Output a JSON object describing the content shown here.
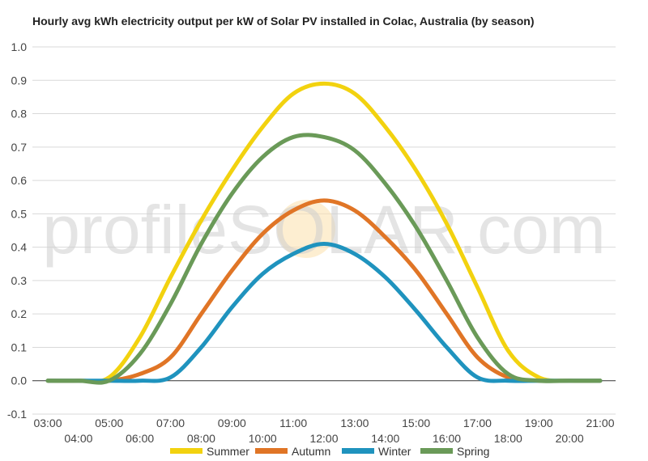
{
  "chart_data": {
    "type": "line",
    "title": "Hourly avg kWh electricity output per kW of Solar PV installed in Colac, Australia (by season)",
    "xlabel": "",
    "ylabel": "",
    "categories": [
      "03:00",
      "04:00",
      "05:00",
      "06:00",
      "07:00",
      "08:00",
      "09:00",
      "10:00",
      "11:00",
      "12:00",
      "13:00",
      "14:00",
      "15:00",
      "16:00",
      "17:00",
      "18:00",
      "19:00",
      "20:00",
      "21:00"
    ],
    "ylim": [
      -0.1,
      1.0
    ],
    "yticks": [
      "1.0",
      "0.9",
      "0.8",
      "0.7",
      "0.6",
      "0.5",
      "0.4",
      "0.3",
      "0.2",
      "0.1",
      "0.0",
      "-0.1"
    ],
    "grid": true,
    "legend_position": "bottom",
    "series": [
      {
        "name": "Summer",
        "color": "#f2d20f",
        "values": [
          0.0,
          0.0,
          0.01,
          0.13,
          0.31,
          0.48,
          0.63,
          0.76,
          0.86,
          0.89,
          0.86,
          0.76,
          0.63,
          0.47,
          0.28,
          0.09,
          0.01,
          0.0,
          0.0
        ]
      },
      {
        "name": "Autumn",
        "color": "#e07526",
        "values": [
          0.0,
          0.0,
          0.0,
          0.02,
          0.07,
          0.2,
          0.33,
          0.44,
          0.51,
          0.54,
          0.51,
          0.43,
          0.33,
          0.2,
          0.07,
          0.01,
          0.0,
          0.0,
          0.0
        ]
      },
      {
        "name": "Winter",
        "color": "#1f93be",
        "values": [
          0.0,
          0.0,
          0.0,
          0.0,
          0.01,
          0.1,
          0.22,
          0.32,
          0.38,
          0.41,
          0.38,
          0.31,
          0.21,
          0.1,
          0.01,
          0.0,
          0.0,
          0.0,
          0.0
        ]
      },
      {
        "name": "Spring",
        "color": "#6a9a58",
        "values": [
          0.0,
          0.0,
          0.0,
          0.08,
          0.23,
          0.41,
          0.56,
          0.67,
          0.73,
          0.73,
          0.69,
          0.59,
          0.46,
          0.3,
          0.13,
          0.02,
          0.0,
          0.0,
          0.0
        ]
      }
    ]
  },
  "watermark": {
    "text": "profileSOLAR.com"
  }
}
